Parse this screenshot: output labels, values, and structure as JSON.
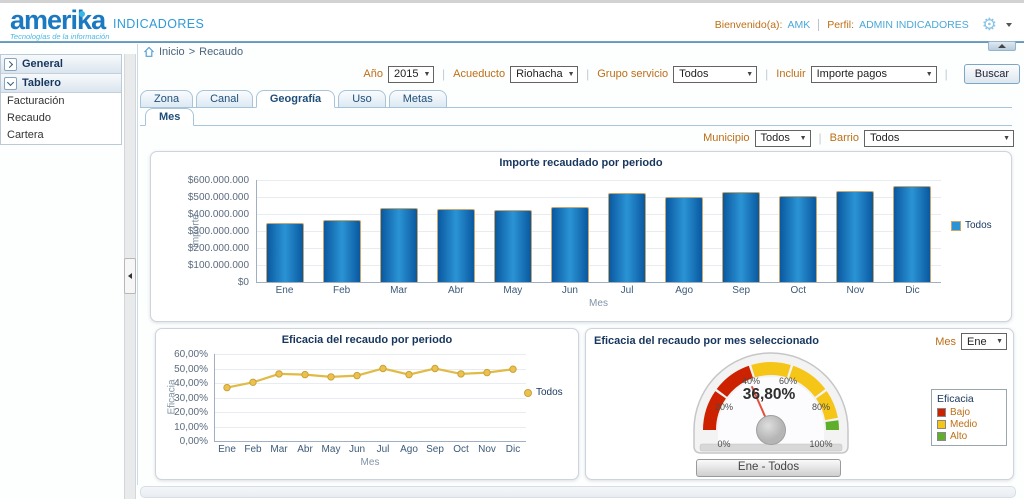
{
  "header": {
    "logo_text": "amerika",
    "logo_tagline": "Tecnologías de la información",
    "app_title": "INDICADORES",
    "welcome_label": "Bienvenido(a):",
    "welcome_user": "AMK",
    "profile_label": "Perfil:",
    "profile_value": "ADMIN INDICADORES"
  },
  "icons": {
    "gear": "⚙",
    "select_arrow": "▼"
  },
  "sidebar": {
    "sections": [
      {
        "label": "General",
        "expanded": false,
        "items": []
      },
      {
        "label": "Tablero",
        "expanded": true,
        "items": [
          "Facturación",
          "Recaudo",
          "Cartera"
        ]
      }
    ]
  },
  "breadcrumb": {
    "home_label": "Inicio",
    "separator": ">",
    "current": "Recaudo"
  },
  "toolbar": {
    "filters": [
      {
        "id": "ano",
        "label": "Año",
        "value": "2015",
        "width": 46
      },
      {
        "id": "acueducto",
        "label": "Acueducto",
        "value": "Riohacha",
        "width": 68
      },
      {
        "id": "grupo-servicio",
        "label": "Grupo servicio",
        "value": "Todos",
        "width": 84
      },
      {
        "id": "incluir",
        "label": "Incluir",
        "value": "Importe pagos",
        "width": 126
      }
    ],
    "search_button": "Buscar"
  },
  "tabs": {
    "items": [
      "Zona",
      "Canal",
      "Geografía",
      "Uso",
      "Metas"
    ],
    "active_index": 2,
    "subtabs": [
      "Mes"
    ],
    "active_subtab_index": 0
  },
  "region_filters": [
    {
      "id": "municipio",
      "label": "Municipio",
      "value": "Todos",
      "width": 56
    },
    {
      "id": "barrio",
      "label": "Barrio",
      "value": "Todos",
      "width": 150
    }
  ],
  "colors": {
    "title_navy": "#17365d",
    "label_orange": "#bd6f16",
    "accent_blue": "#1a79c0",
    "link_blue": "#2f9bd8"
  },
  "chart_data": [
    {
      "type": "bar",
      "title": "Importe recaudado por periodo",
      "xlabel": "Mes",
      "ylabel": "Importe",
      "categories": [
        "Ene",
        "Feb",
        "Mar",
        "Abr",
        "May",
        "Jun",
        "Jul",
        "Ago",
        "Sep",
        "Oct",
        "Nov",
        "Dic"
      ],
      "series": [
        {
          "name": "Todos",
          "values_millions": [
            346,
            367,
            436,
            430,
            421,
            444,
            521,
            499,
            530,
            506,
            538,
            563
          ]
        }
      ],
      "unit": "COP $",
      "ylim_millions": [
        0,
        600
      ],
      "y_tick_labels": [
        "$600.000.000",
        "$500.000.000",
        "$400.000.000",
        "$300.000.000",
        "$200.000.000",
        "$100.000.000",
        "$0"
      ],
      "legend": [
        "Todos"
      ],
      "legend_position": "right",
      "grid": true,
      "bar_color_dark": "#0a58a0",
      "bar_color_light": "#2a94d4",
      "bar_border": "#c9a570"
    },
    {
      "type": "line",
      "title": "Eficacia del recaudo por periodo",
      "xlabel": "Mes",
      "ylabel": "Eficacia",
      "categories": [
        "Ene",
        "Feb",
        "Mar",
        "Abr",
        "May",
        "Jun",
        "Jul",
        "Ago",
        "Sep",
        "Oct",
        "Nov",
        "Dic"
      ],
      "series": [
        {
          "name": "Todos",
          "values_percent": [
            36.8,
            40.5,
            46.3,
            45.8,
            44.2,
            45.1,
            50.0,
            45.8,
            50.0,
            46.3,
            47.2,
            49.5
          ]
        }
      ],
      "ylim_percent": [
        0,
        60
      ],
      "y_tick_labels": [
        "60,00%",
        "50,00%",
        "40,00%",
        "30,00%",
        "20,00%",
        "10,00%",
        "0,00%"
      ],
      "legend": [
        "Todos"
      ],
      "legend_position": "right",
      "grid": true,
      "line_color": "#e0bb45",
      "marker_color": "#ecc14f",
      "marker_border": "#c9a238"
    },
    {
      "type": "gauge",
      "title": "Eficacia del recaudo por mes seleccionado",
      "month_filter": {
        "label": "Mes",
        "value": "Ene"
      },
      "value_percent": 36.8,
      "value_display": "36,80%",
      "tick_labels": [
        "0%",
        "20%",
        "40%",
        "60%",
        "80%",
        "100%"
      ],
      "ranges": [
        {
          "name": "Bajo",
          "from": 0,
          "to": 40,
          "color": "#cc2200"
        },
        {
          "name": "Medio",
          "from": 40,
          "to": 95,
          "color": "#f5c518"
        },
        {
          "name": "Alto",
          "from": 95,
          "to": 100,
          "color": "#5fae2c"
        }
      ],
      "segments": [
        {
          "from": 0,
          "to": 19.4,
          "color": "#cc2200"
        },
        {
          "from": 20.6,
          "to": 39.4,
          "color": "#cc2200"
        },
        {
          "from": 40.6,
          "to": 59.4,
          "color": "#f5c518"
        },
        {
          "from": 60.6,
          "to": 79.4,
          "color": "#f5c518"
        },
        {
          "from": 80.6,
          "to": 94.2,
          "color": "#f5c518"
        },
        {
          "from": 95.4,
          "to": 100,
          "color": "#5fae2c"
        }
      ],
      "needle_color": "#e4503a",
      "legend": {
        "title": "Eficacia",
        "items": [
          {
            "label": "Bajo",
            "color": "#cc2200"
          },
          {
            "label": "Medio",
            "color": "#f5c518"
          },
          {
            "label": "Alto",
            "color": "#5fae2c"
          }
        ]
      },
      "footer_button": "Ene - Todos"
    }
  ]
}
